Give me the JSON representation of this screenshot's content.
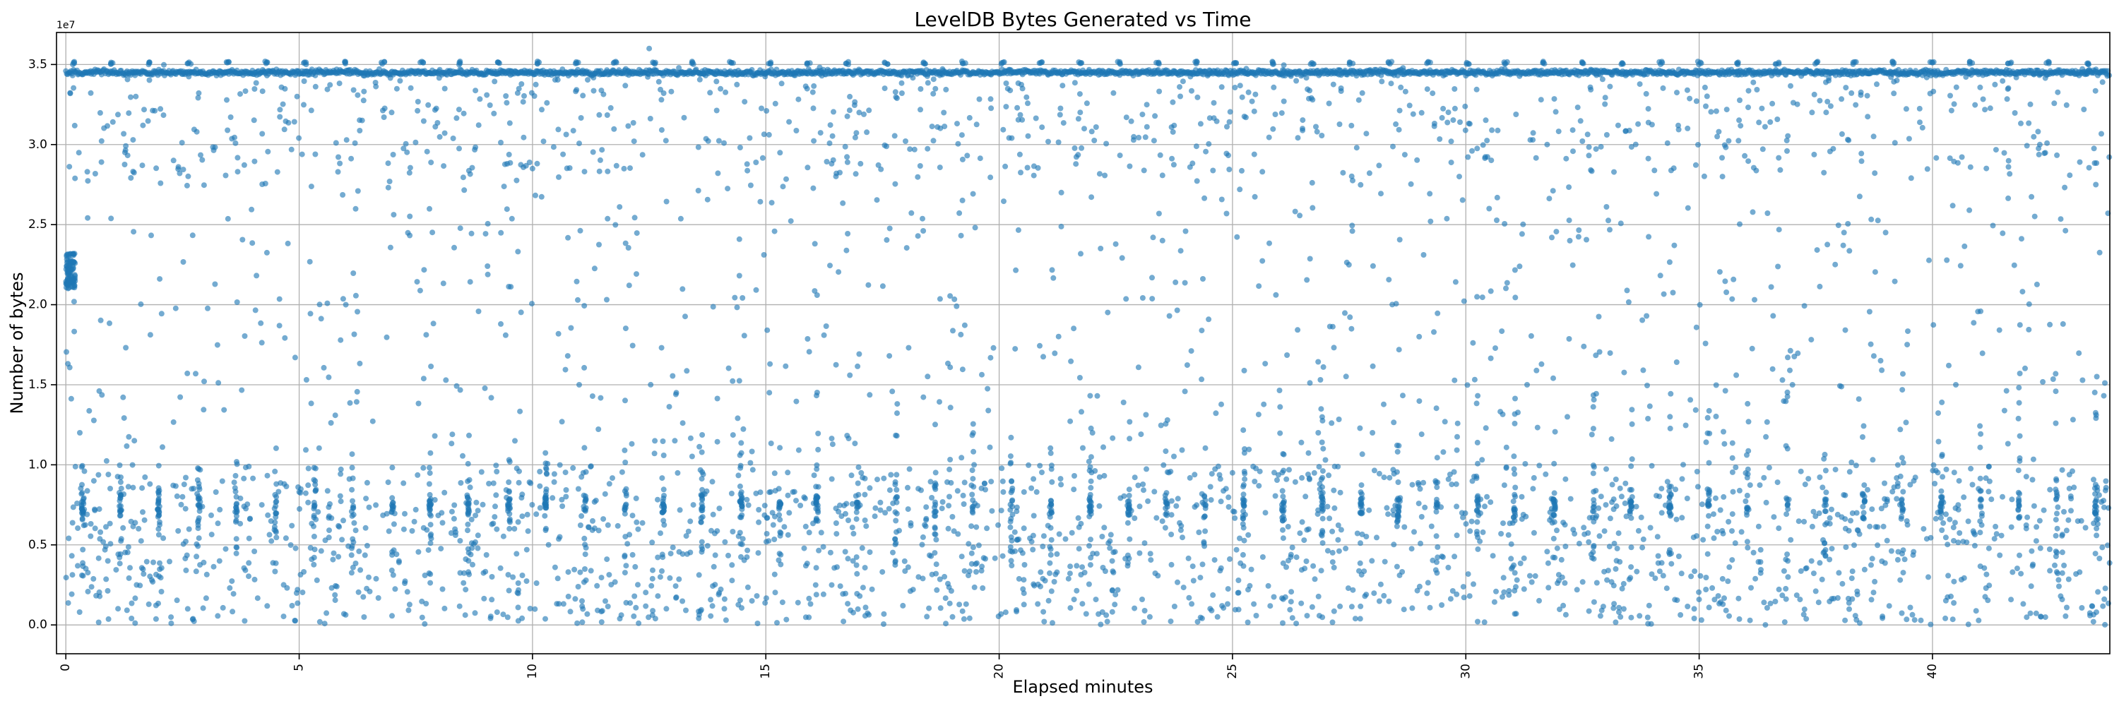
{
  "chart_data": {
    "type": "scatter",
    "title": "LevelDB Bytes Generated vs Time",
    "xlabel": "Elapsed minutes",
    "ylabel": "Number of bytes",
    "y_offset_label": "1e7",
    "xlim": [
      -0.2,
      43.8
    ],
    "ylim": [
      -1800000,
      37000000
    ],
    "x_ticks": [
      0,
      5,
      10,
      15,
      20,
      25,
      30,
      35,
      40
    ],
    "x_tick_labels": [
      "0",
      "5",
      "10",
      "15",
      "20",
      "25",
      "30",
      "35",
      "40"
    ],
    "y_ticks": [
      0,
      5000000,
      10000000,
      15000000,
      20000000,
      25000000,
      30000000,
      35000000
    ],
    "y_tick_labels": [
      "0.0",
      "0.5",
      "1.0",
      "1.5",
      "2.0",
      "2.5",
      "3.0",
      "3.5"
    ],
    "grid": true,
    "x_tick_rotation_deg": 90,
    "marker_color": "#1f77b4",
    "marker_alpha": 0.62,
    "series": [
      {
        "name": "bytes",
        "x_range": [
          0,
          43.8
        ],
        "point_count_estimate": 9000,
        "dense_band": {
          "y_center": 34500000,
          "y_spread": 250000,
          "description": "near-continuous line of points across the full time range"
        },
        "startup_cluster": {
          "x_range": [
            0,
            0.2
          ],
          "y_range": [
            21000000,
            23200000
          ]
        },
        "interval_columns": {
          "period_minutes": 0.83,
          "y_range": [
            3000000,
            10000000
          ],
          "description": "periodic vertical columns of points with denser clusters near 7e6-8e6"
        },
        "upper_spikes_y": 35000000,
        "background_scatter_y_range": [
          0,
          35000000
        ],
        "samples": [
          {
            "x": 0.05,
            "y": 22000000
          },
          {
            "x": 0.12,
            "y": 21500000
          },
          {
            "x": 0.3,
            "y": 12000000
          },
          {
            "x": 0.6,
            "y": 9000000
          },
          {
            "x": 0.9,
            "y": 4000000
          },
          {
            "x": 1.5,
            "y": 33000000
          },
          {
            "x": 2.5,
            "y": 8000000
          },
          {
            "x": 3.3,
            "y": 7200000
          },
          {
            "x": 4.2,
            "y": 7500000
          },
          {
            "x": 5.0,
            "y": 8300000
          },
          {
            "x": 6.0,
            "y": 20000000
          },
          {
            "x": 7.5,
            "y": 7200000
          },
          {
            "x": 9.2,
            "y": 7400000
          },
          {
            "x": 10.0,
            "y": 28500000
          },
          {
            "x": 11.0,
            "y": 15000000
          },
          {
            "x": 12.5,
            "y": 36000000
          },
          {
            "x": 14.0,
            "y": 2000000
          },
          {
            "x": 15.5,
            "y": 7000000
          },
          {
            "x": 17.0,
            "y": 32000000
          },
          {
            "x": 19.0,
            "y": 500000
          },
          {
            "x": 20.5,
            "y": 33500000
          },
          {
            "x": 22.0,
            "y": 12000000
          },
          {
            "x": 23.5,
            "y": 24000000
          },
          {
            "x": 25.0,
            "y": 9500000
          },
          {
            "x": 26.5,
            "y": 31000000
          },
          {
            "x": 28.0,
            "y": 12000000
          },
          {
            "x": 29.0,
            "y": 18000000
          },
          {
            "x": 30.5,
            "y": 26000000
          },
          {
            "x": 31.2,
            "y": 8000000
          },
          {
            "x": 33.0,
            "y": 7500000
          },
          {
            "x": 34.2,
            "y": 7000000
          },
          {
            "x": 35.5,
            "y": 28000000
          },
          {
            "x": 37.0,
            "y": 15000000
          },
          {
            "x": 38.5,
            "y": 8200000
          },
          {
            "x": 39.6,
            "y": 9000000
          },
          {
            "x": 40.5,
            "y": 15000000
          },
          {
            "x": 41.5,
            "y": 8000000
          },
          {
            "x": 42.3,
            "y": 30000000
          },
          {
            "x": 43.5,
            "y": 27500000
          }
        ]
      }
    ]
  }
}
